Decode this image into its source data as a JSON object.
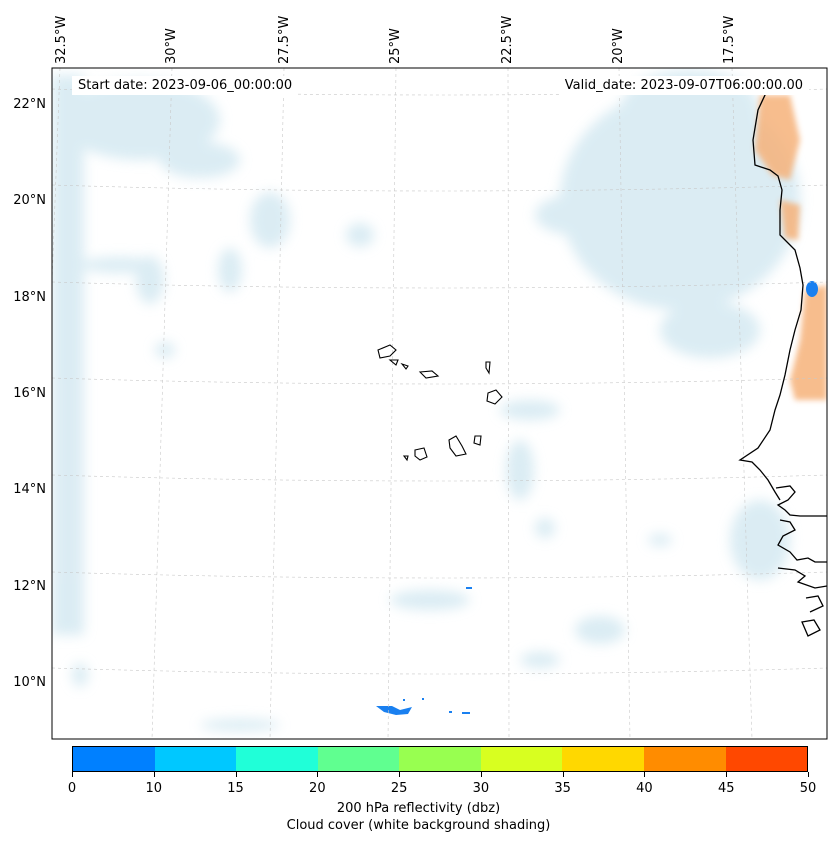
{
  "map": {
    "start_date_label": "Start date: 2023-09-06_00:00:00",
    "valid_date_label": "Valid_date: 2023-09-07T06:00:00.00",
    "lon_labels": [
      "32.5°W",
      "30°W",
      "27.5°W",
      "25°W",
      "22.5°W",
      "20°W",
      "17.5°W"
    ],
    "lat_labels": [
      "22°N",
      "20°N",
      "18°N",
      "16°N",
      "14°N",
      "12°N",
      "10°N"
    ],
    "cloud_color": "#cfe6f0",
    "warm_color": "#f6b27a",
    "coastline_color": "#000000"
  },
  "colorbar": {
    "ticks": [
      "0",
      "10",
      "15",
      "20",
      "25",
      "30",
      "35",
      "40",
      "45",
      "50"
    ],
    "colors": [
      "#0080ff",
      "#00c8ff",
      "#20ffd8",
      "#60ff90",
      "#98ff50",
      "#d8ff20",
      "#ffd800",
      "#ff8c00",
      "#ff4800"
    ],
    "label_line1": "200 hPa reflectivity (dbz)",
    "label_line2": "Cloud cover (white background shading)"
  }
}
